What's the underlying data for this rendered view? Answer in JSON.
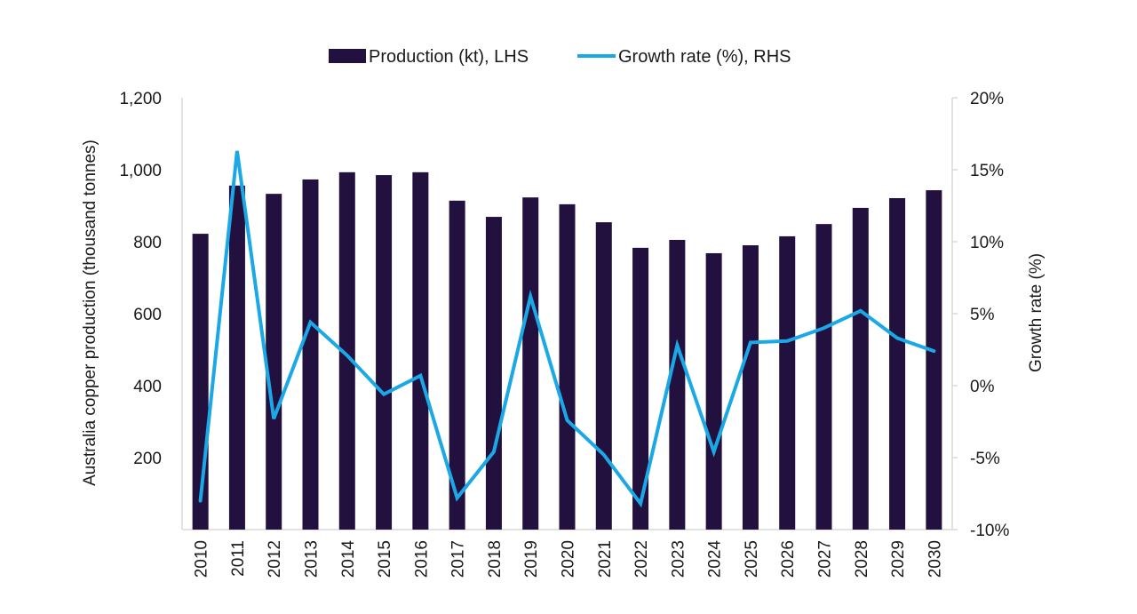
{
  "chart_data": {
    "type": "bar+line",
    "title": "",
    "categories": [
      "2010",
      "2011",
      "2012",
      "2013",
      "2014",
      "2015",
      "2016",
      "2017",
      "2018",
      "2019",
      "2020",
      "2021",
      "2022",
      "2023",
      "2024",
      "2025",
      "2026",
      "2027",
      "2028",
      "2029",
      "2030"
    ],
    "series": [
      {
        "name": "Production (kt), LHS",
        "type": "bar",
        "axis": "left",
        "color": "#22103f",
        "values": [
          822,
          956,
          933,
          973,
          993,
          985,
          993,
          914,
          869,
          923,
          904,
          854,
          783,
          805,
          768,
          790,
          815,
          849,
          894,
          921,
          943
        ]
      },
      {
        "name": "Growth rate (%), RHS",
        "type": "line",
        "axis": "right",
        "color": "#1ba8e6",
        "values": [
          -8.0,
          16.3,
          -2.3,
          4.4,
          2.1,
          -0.6,
          0.7,
          -7.8,
          -4.6,
          6.2,
          -2.4,
          -4.8,
          -8.2,
          2.8,
          -4.6,
          3.0,
          3.1,
          4.0,
          5.2,
          3.3,
          2.4
        ]
      }
    ],
    "ylabel_left": "Australia copper production (thousand tonnes)",
    "ylabel_right": "Growth rate (%)",
    "xlabel": "",
    "ylim_left": [
      0,
      1200
    ],
    "ylim_right": [
      -10,
      20
    ],
    "yticks_left": [
      200,
      400,
      600,
      800,
      1000,
      1200
    ],
    "yticks_left_labels": [
      "200",
      "400",
      "600",
      "800",
      "1,000",
      "1,200"
    ],
    "yticks_right": [
      -10,
      -5,
      0,
      5,
      10,
      15,
      20
    ],
    "yticks_right_labels": [
      "-10%",
      "-5%",
      "0%",
      "5%",
      "10%",
      "15%",
      "20%"
    ],
    "grid": false,
    "legend_position": "top-center",
    "legend": [
      "Production (kt), LHS",
      "Growth rate (%), RHS"
    ]
  }
}
